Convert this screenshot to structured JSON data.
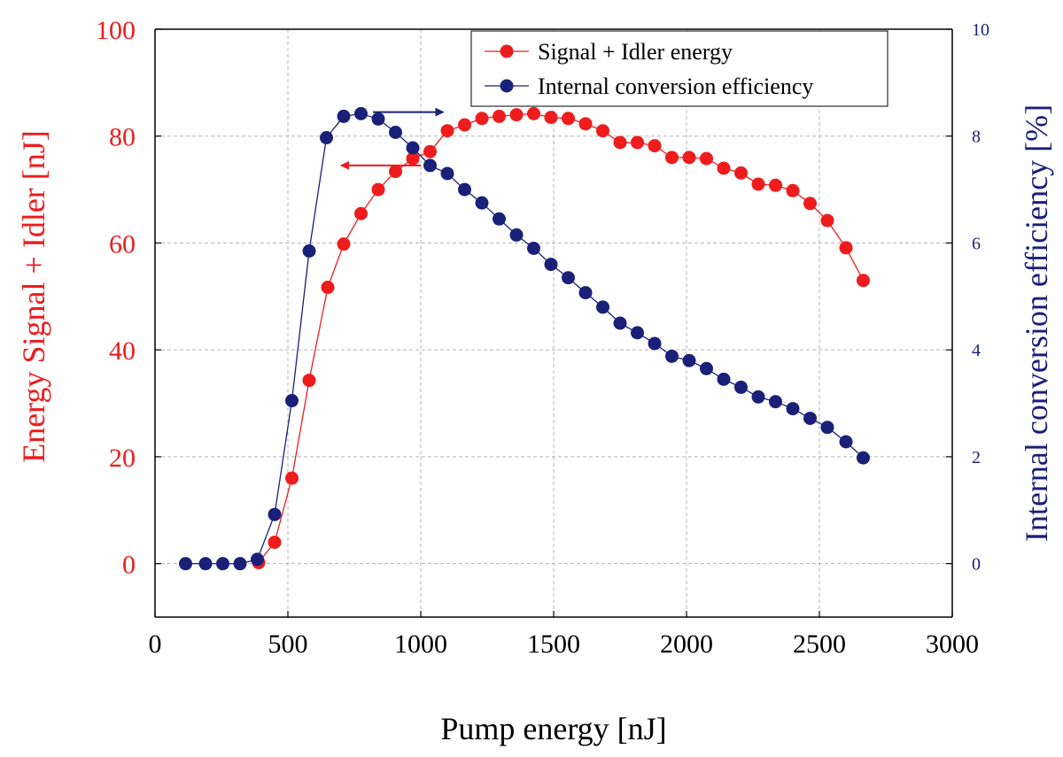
{
  "chart_data": {
    "type": "scatter",
    "xlabel": "Pump energy [nJ]",
    "ylabel_left": "Energy Signal + Idler [nJ]",
    "ylabel_right": "Internal conversion efficiency [%]",
    "xlim": [
      0,
      3000
    ],
    "ylim_left": [
      -10,
      100
    ],
    "ylim_right": [
      -1,
      10
    ],
    "x_ticks": [
      0,
      500,
      1000,
      1500,
      2000,
      2500,
      3000
    ],
    "y_ticks_left": [
      0,
      20,
      40,
      60,
      80,
      100
    ],
    "y_ticks_right": [
      0,
      2,
      4,
      6,
      8,
      10
    ],
    "grid": true,
    "legend_position": "top-right",
    "colors": {
      "signal": "#ee1c1c",
      "efficiency": "#1a1f78",
      "grid": "#b4b4b4",
      "axis": "#000000"
    },
    "series": [
      {
        "name": "Signal + Idler energy",
        "axis": "left",
        "x": [
          390,
          450,
          515,
          580,
          650,
          710,
          775,
          840,
          905,
          970,
          1035,
          1100,
          1165,
          1230,
          1295,
          1360,
          1425,
          1490,
          1555,
          1620,
          1685,
          1750,
          1815,
          1880,
          1945,
          2010,
          2075,
          2140,
          2205,
          2270,
          2335,
          2400,
          2465,
          2530,
          2600,
          2665
        ],
        "y": [
          0.2,
          4,
          16,
          34.3,
          51.7,
          59.8,
          65.5,
          70,
          73.4,
          75.8,
          77.1,
          81,
          82.1,
          83.3,
          83.7,
          84,
          84.2,
          83.5,
          83.3,
          82.3,
          81,
          78.8,
          78.8,
          78.2,
          76,
          76,
          75.8,
          74,
          73.1,
          71,
          70.8,
          69.8,
          67.4,
          64.2,
          59.1,
          53
        ]
      },
      {
        "name": "Internal conversion efficiency",
        "axis": "right",
        "x": [
          115,
          190,
          255,
          320,
          385,
          450,
          515,
          580,
          645,
          710,
          775,
          840,
          905,
          970,
          1035,
          1100,
          1165,
          1230,
          1295,
          1360,
          1425,
          1490,
          1555,
          1620,
          1685,
          1750,
          1815,
          1880,
          1945,
          2010,
          2075,
          2140,
          2205,
          2270,
          2335,
          2400,
          2465,
          2530,
          2600,
          2665
        ],
        "y": [
          0,
          0,
          0,
          0,
          0.08,
          0.92,
          3.05,
          5.85,
          7.97,
          8.37,
          8.42,
          8.32,
          8.07,
          7.78,
          7.45,
          7.3,
          7.0,
          6.75,
          6.45,
          6.15,
          5.9,
          5.6,
          5.35,
          5.07,
          4.8,
          4.5,
          4.32,
          4.12,
          3.88,
          3.8,
          3.65,
          3.45,
          3.3,
          3.12,
          3.03,
          2.9,
          2.72,
          2.55,
          2.28,
          1.98
        ]
      }
    ],
    "annotations": [
      {
        "type": "arrow",
        "direction": "left",
        "points_to": "left axis",
        "from": [
          1000,
          74.5
        ],
        "to": [
          700,
          74.5
        ],
        "color_key": "signal"
      },
      {
        "type": "arrow",
        "direction": "right",
        "points_to": "right axis",
        "from": [
          820,
          8.45
        ],
        "to": [
          1085,
          8.45
        ],
        "color_key": "efficiency"
      }
    ]
  }
}
